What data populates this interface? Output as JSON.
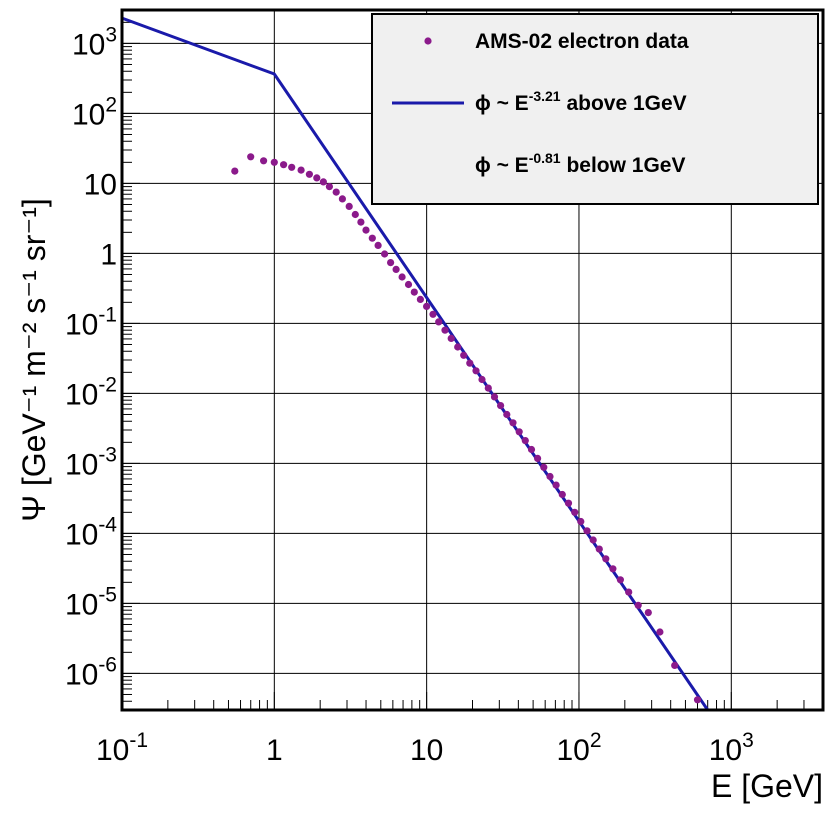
{
  "chart_data": {
    "type": "scatter",
    "x_scale": "log",
    "y_scale": "log",
    "xlim": [
      0.1,
      4000
    ],
    "ylim": [
      3e-07,
      3000
    ],
    "grid": true,
    "legend_placement": "top-right",
    "xlabel": "E [GeV]",
    "ylabel": "Ψ [GeV⁻¹ m⁻² s⁻¹ sr⁻¹]",
    "x_ticks": [
      {
        "value": 0.1,
        "base": "10",
        "exp": "-1"
      },
      {
        "value": 1,
        "base": "1",
        "exp": ""
      },
      {
        "value": 10,
        "base": "10",
        "exp": ""
      },
      {
        "value": 100,
        "base": "10",
        "exp": "2"
      },
      {
        "value": 1000,
        "base": "10",
        "exp": "3"
      }
    ],
    "y_ticks": [
      {
        "value": 1000,
        "base": "10",
        "exp": "3"
      },
      {
        "value": 100,
        "base": "10",
        "exp": "2"
      },
      {
        "value": 10,
        "base": "10",
        "exp": ""
      },
      {
        "value": 1,
        "base": "1",
        "exp": ""
      },
      {
        "value": 0.1,
        "base": "10",
        "exp": "-1"
      },
      {
        "value": 0.01,
        "base": "10",
        "exp": "-2"
      },
      {
        "value": 0.001,
        "base": "10",
        "exp": "-3"
      },
      {
        "value": 0.0001,
        "base": "10",
        "exp": "-4"
      },
      {
        "value": 1e-05,
        "base": "10",
        "exp": "-5"
      },
      {
        "value": 1e-06,
        "base": "10",
        "exp": "-6"
      }
    ],
    "series": [
      {
        "name": "AMS-02 electron data",
        "type": "scatter",
        "color": "#8B1A8B",
        "points": [
          [
            0.55,
            15
          ],
          [
            0.7,
            24
          ],
          [
            0.85,
            21
          ],
          [
            1.0,
            20
          ],
          [
            1.15,
            18.5
          ],
          [
            1.3,
            17
          ],
          [
            1.5,
            15.5
          ],
          [
            1.7,
            13.5
          ],
          [
            1.9,
            12
          ],
          [
            2.1,
            10.5
          ],
          [
            2.3,
            9
          ],
          [
            2.55,
            7.5
          ],
          [
            2.8,
            6
          ],
          [
            3.1,
            4.7
          ],
          [
            3.4,
            3.6
          ],
          [
            3.7,
            2.8
          ],
          [
            4.0,
            2.15
          ],
          [
            4.4,
            1.65
          ],
          [
            4.8,
            1.3
          ],
          [
            5.3,
            0.98
          ],
          [
            5.8,
            0.74
          ],
          [
            6.3,
            0.59
          ],
          [
            6.9,
            0.46
          ],
          [
            7.6,
            0.36
          ],
          [
            8.3,
            0.28
          ],
          [
            9.1,
            0.22
          ],
          [
            10.0,
            0.175
          ],
          [
            11.0,
            0.135
          ],
          [
            12.0,
            0.105
          ],
          [
            13.2,
            0.08
          ],
          [
            14.5,
            0.061
          ],
          [
            16.0,
            0.046
          ],
          [
            17.5,
            0.035
          ],
          [
            19.2,
            0.027
          ],
          [
            21.1,
            0.021
          ],
          [
            23.1,
            0.0158
          ],
          [
            25.4,
            0.0119
          ],
          [
            27.9,
            0.0089
          ],
          [
            30.6,
            0.0067
          ],
          [
            33.6,
            0.005
          ],
          [
            36.9,
            0.0038
          ],
          [
            40.5,
            0.00283
          ],
          [
            44.4,
            0.00212
          ],
          [
            48.8,
            0.00158
          ],
          [
            53.5,
            0.00118
          ],
          [
            58.8,
            0.00088
          ],
          [
            64.5,
            0.00065
          ],
          [
            70.8,
            0.00049
          ],
          [
            77.7,
            0.00036
          ],
          [
            85.3,
            0.00027
          ],
          [
            93.7,
            0.0002
          ],
          [
            102.8,
            0.000148
          ],
          [
            112.9,
            0.000109
          ],
          [
            124,
            8.06e-05
          ],
          [
            136,
            5.96e-05
          ],
          [
            150,
            4.34e-05
          ],
          [
            167,
            3.12e-05
          ],
          [
            187,
            2.17e-05
          ],
          [
            212,
            1.45e-05
          ],
          [
            245,
            9.4e-06
          ],
          [
            285,
            7.4e-06
          ],
          [
            340,
            3.9e-06
          ],
          [
            425,
            1.3e-06
          ],
          [
            600,
            4.2e-07
          ]
        ]
      },
      {
        "name": "ϕ ~ E^-3.21 above 1GeV",
        "type": "line",
        "color": "#1a1aaa",
        "points": [
          [
            0.1,
            2300
          ],
          [
            1,
            365
          ],
          [
            700,
            3e-07
          ]
        ]
      }
    ],
    "legend": [
      {
        "symbol": "dot",
        "parts": [
          {
            "text": "AMS-02 electron data",
            "sup": false
          }
        ]
      },
      {
        "symbol": "line",
        "parts": [
          {
            "text": "ϕ ~ E",
            "sup": false
          },
          {
            "text": "-3.21",
            "sup": true
          },
          {
            "text": " above 1GeV",
            "sup": false
          }
        ]
      },
      {
        "symbol": "none",
        "parts": [
          {
            "text": "ϕ ~  E",
            "sup": false
          },
          {
            "text": "-0.81",
            "sup": true
          },
          {
            "text": "  below 1GeV",
            "sup": false
          }
        ]
      }
    ]
  }
}
